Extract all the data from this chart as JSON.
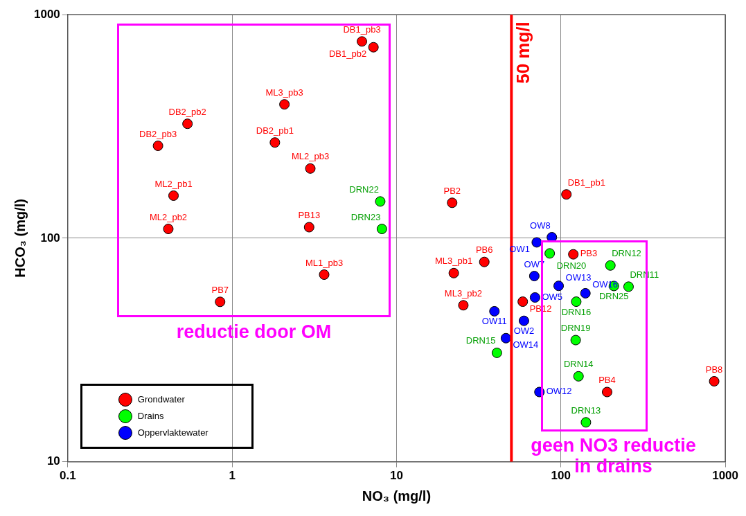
{
  "chart_data": {
    "type": "scatter",
    "xlabel": "NO₃ (mg/l)",
    "ylabel": "HCO₃ (mg/l)",
    "log": "xy",
    "grid": true,
    "legend": "bottom left",
    "marker": "circle",
    "xlim": [
      0.1,
      1000
    ],
    "xticks": [
      0.1,
      1,
      10,
      100,
      1000
    ],
    "ylim": [
      10,
      1000
    ],
    "yticks": [
      10,
      100,
      1000
    ],
    "series": [
      {
        "name": "Grondwater",
        "color": "#ff0000",
        "x": [
          6.16,
          7.24,
          2.08,
          0.535,
          0.354,
          1.82,
          2.99,
          0.44,
          0.409,
          2.94,
          3.63,
          0.845,
          21.8,
          108,
          119,
          34.2,
          22.3,
          58.6,
          25.5,
          856,
          191
        ],
        "values": [
          759,
          715,
          397,
          325,
          259,
          268,
          205,
          155,
          110,
          112,
          68.7,
          51.9,
          144,
          157,
          84.7,
          78.3,
          69.8,
          52.0,
          50.1,
          22.9,
          20.5
        ]
      },
      {
        "name": "Drains",
        "color": "#00ff00",
        "x": [
          7.96,
          8.15,
          85.5,
          200,
          210,
          258,
          124,
          123,
          40.8,
          128,
          142
        ],
        "values": [
          146,
          110,
          85.5,
          75.5,
          61.1,
          60.7,
          52.0,
          35.0,
          30.7,
          24.1,
          15.0
        ]
      },
      {
        "name": "Oppervlaktewater",
        "color": "#0000ff",
        "x": [
          88.1,
          71.3,
          68.9,
          96.9,
          141,
          69.6,
          39.4,
          59.6,
          46.3,
          74
        ],
        "values": [
          101,
          95.8,
          67.7,
          61.2,
          56.7,
          54.3,
          47.1,
          42.7,
          35.7,
          20.5
        ]
      }
    ],
    "ref_lines": [
      {
        "axis": "x",
        "value": 50,
        "label": "50 mg/l",
        "color": "#ff0000"
      }
    ],
    "annotations": [
      "reductie door OM",
      "geen NO3 reductie in drains",
      {
        "text": "DB1_pb3",
        "x": 6.16,
        "y": 759
      },
      {
        "text": "DB1_pb2",
        "x": 7.24,
        "y": 715
      },
      {
        "text": "ML3_pb3",
        "x": 2.08,
        "y": 397
      },
      {
        "text": "DB2_pb2",
        "x": 0.535,
        "y": 325
      },
      {
        "text": "DB2_pb3",
        "x": 0.354,
        "y": 259
      },
      {
        "text": "DB2_pb1",
        "x": 1.82,
        "y": 268
      },
      {
        "text": "ML2_pb3",
        "x": 2.99,
        "y": 205
      },
      {
        "text": "ML2_pb1",
        "x": 0.44,
        "y": 155
      },
      {
        "text": "ML2_pb2",
        "x": 0.409,
        "y": 110
      },
      {
        "text": "PB13",
        "x": 2.94,
        "y": 112
      },
      {
        "text": "ML1_pb3",
        "x": 3.63,
        "y": 68.7
      },
      {
        "text": "PB7",
        "x": 0.845,
        "y": 51.9
      },
      {
        "text": "PB2",
        "x": 21.8,
        "y": 144
      },
      {
        "text": "DB1_pb1",
        "x": 108,
        "y": 157
      },
      {
        "text": "PB3",
        "x": 119,
        "y": 84.7
      },
      {
        "text": "PB6",
        "x": 34.2,
        "y": 78.3
      },
      {
        "text": "ML3_pb1",
        "x": 22.3,
        "y": 69.8
      },
      {
        "text": "PB12",
        "x": 58.6,
        "y": 52.0
      },
      {
        "text": "ML3_pb2",
        "x": 25.5,
        "y": 50.1
      },
      {
        "text": "PB8",
        "x": 856,
        "y": 22.9
      },
      {
        "text": "PB4",
        "x": 191,
        "y": 20.5
      },
      {
        "text": "DRN22",
        "x": 7.96,
        "y": 146
      },
      {
        "text": "DRN23",
        "x": 8.15,
        "y": 110
      },
      {
        "text": "DRN20",
        "x": 85.5,
        "y": 85.5
      },
      {
        "text": "DRN12",
        "x": 200,
        "y": 75.5
      },
      {
        "text": "DRN25",
        "x": 210,
        "y": 61.1
      },
      {
        "text": "DRN11",
        "x": 258,
        "y": 60.7
      },
      {
        "text": "DRN16",
        "x": 124,
        "y": 52.0
      },
      {
        "text": "DRN19",
        "x": 123,
        "y": 35.0
      },
      {
        "text": "DRN15",
        "x": 40.8,
        "y": 30.7
      },
      {
        "text": "DRN14",
        "x": 128,
        "y": 24.1
      },
      {
        "text": "DRN13",
        "x": 142,
        "y": 15.0
      },
      {
        "text": "OW8",
        "x": 88.1,
        "y": 101
      },
      {
        "text": "OW1",
        "x": 71.3,
        "y": 95.8
      },
      {
        "text": "OW7",
        "x": 68.9,
        "y": 67.7
      },
      {
        "text": "OW13",
        "x": 96.9,
        "y": 61.2
      },
      {
        "text": "OW16",
        "x": 141,
        "y": 56.7
      },
      {
        "text": "OW5",
        "x": 69.6,
        "y": 54.3
      },
      {
        "text": "OW11",
        "x": 39.4,
        "y": 47.1
      },
      {
        "text": "OW2",
        "x": 59.6,
        "y": 42.7
      },
      {
        "text": "OW14",
        "x": 46.3,
        "y": 35.7
      },
      {
        "text": "OW12",
        "x": 74,
        "y": 20.5
      }
    ]
  }
}
